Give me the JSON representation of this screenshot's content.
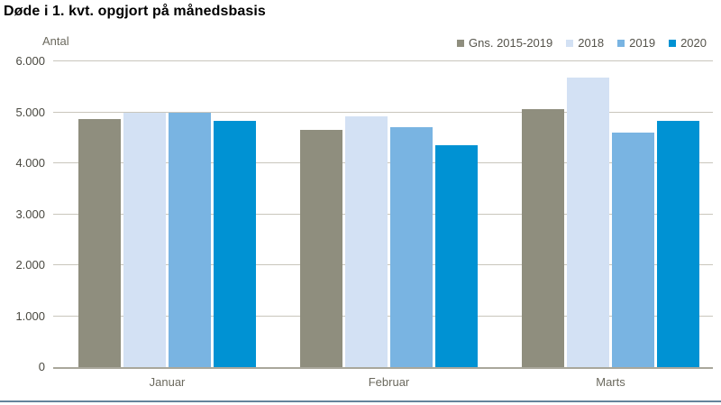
{
  "title": "Døde i 1. kvt. opgjort på månedsbasis",
  "y_axis_unit": "Antal",
  "colors": {
    "gridline": "#C9C6BC",
    "axis_line": "#A9A79B",
    "y_tick_text": "#494840",
    "x_tick_text": "#6B695E",
    "legend_text": "#55534B",
    "title_text": "#000000",
    "bottom_rule": "#64839B",
    "background": "#FFFFFF"
  },
  "chart_data": {
    "type": "bar",
    "title": "Døde i 1. kvt. opgjort på månedsbasis",
    "xlabel": "",
    "ylabel": "Antal",
    "ylim": [
      0,
      6000
    ],
    "y_tick_interval": 1000,
    "y_tick_labels": [
      "0",
      "1.000",
      "2.000",
      "3.000",
      "4.000",
      "5.000",
      "6.000"
    ],
    "grid": true,
    "legend_position": "top-right",
    "categories": [
      "Januar",
      "Februar",
      "Marts"
    ],
    "series": [
      {
        "name": "Gns. 2015-2019",
        "color": "#8F8E7E",
        "values": [
          4870,
          4660,
          5060
        ]
      },
      {
        "name": "2018",
        "color": "#D3E1F4",
        "values": [
          5000,
          4930,
          5690
        ]
      },
      {
        "name": "2019",
        "color": "#79B4E2",
        "values": [
          5000,
          4710,
          4600
        ]
      },
      {
        "name": "2020",
        "color": "#0092D3",
        "values": [
          4830,
          4360,
          4830
        ]
      }
    ]
  }
}
